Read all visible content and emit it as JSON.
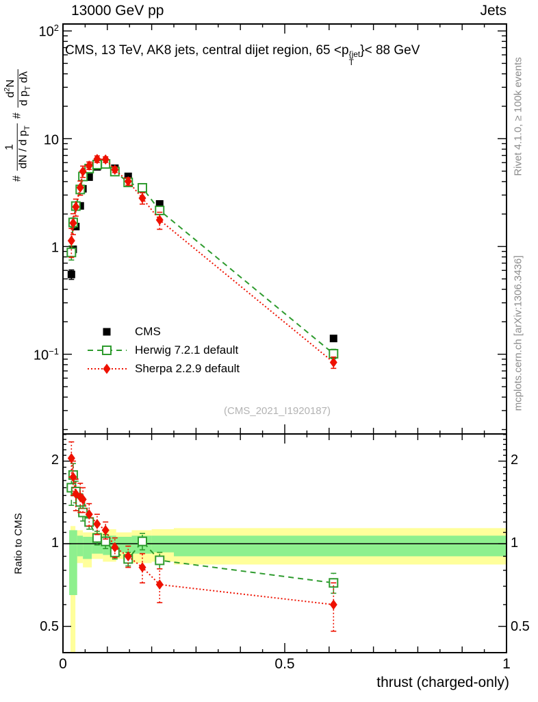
{
  "header": {
    "left": "13000 GeV pp",
    "right": "Jets"
  },
  "panel_title": {
    "prefix": "CMS, 13 TeV, AK8 jets, central dijet region, 65 <p",
    "sup": "{jet",
    "sub": "T",
    "suffix": "}< 88 GeV"
  },
  "watermark": "(CMS_2021_I1920187)",
  "side_notes": {
    "top": "Rivet 4.1.0, ≥ 100k events",
    "bottom": "mcplots.cern.ch [arXiv:1306.3436]"
  },
  "y_axis_math": {
    "hash1": "#",
    "frac1_num": "1",
    "frac1_den_prefix": "dN / d p",
    "frac1_den_sub": "T",
    "hash2": "#",
    "frac2_num_prefix": "d",
    "frac2_num_sup": "2",
    "frac2_num_suffix": "N",
    "frac2_den_prefix": "d p",
    "frac2_den_sub": "T",
    "frac2_den_suffix": " dλ"
  },
  "ratio_axis_label": "Ratio to CMS",
  "x_axis_label": "thrust (charged-only)",
  "x_tick_labels": [
    "0",
    "0.5",
    "1"
  ],
  "main_y_ticks": [
    {
      "base": "10",
      "exp": "2"
    },
    {
      "base": "10",
      "exp": ""
    },
    {
      "base": "1",
      "exp": ""
    },
    {
      "base": "10",
      "exp": "−1"
    }
  ],
  "ratio_y_ticks": [
    "2",
    "1",
    "0.5"
  ],
  "legend": [
    {
      "label": "CMS",
      "marker": "black-filled-square"
    },
    {
      "label": "Herwig 7.2.1 default",
      "marker": "green-open-square-dashed-line"
    },
    {
      "label": "Sherpa 2.2.9 default",
      "marker": "red-filled-diamond-dotted-line"
    }
  ],
  "colors": {
    "cms": "#000000",
    "herwig": "#2e9b2e",
    "sherpa": "#ee1100",
    "band_yellow": "#ffff9b",
    "band_green": "#8ef08e",
    "frame": "#000000",
    "side_text": "#8c8c8c",
    "watermark": "#b3b3b3"
  },
  "chart_data": {
    "type": "line",
    "title": "CMS, 13 TeV, AK8 jets, central dijet region, 65 < pT^{jet} < 88 GeV",
    "xlabel": "thrust (charged-only)",
    "ylabel": "# 1/(dN/dpT) # d^2N/(dpT dlambda)",
    "ratio_ylabel": "Ratio to CMS",
    "grid": false,
    "legend_position": "inside-left",
    "xlim": [
      0,
      1
    ],
    "main_ylog": true,
    "main_ylim": [
      0.0182,
      116
    ],
    "ratio_ylog": true,
    "ratio_ylim": [
      0.401,
      2.512
    ],
    "x": [
      0.019,
      0.023,
      0.029,
      0.039,
      0.045,
      0.059,
      0.077,
      0.096,
      0.117,
      0.147,
      0.179,
      0.218,
      0.61
    ],
    "series": [
      {
        "name": "CMS",
        "role": "data",
        "marker": "filled-square",
        "line": "none",
        "y": [
          0.55,
          0.94,
          1.53,
          2.38,
          3.43,
          4.4,
          5.48,
          5.72,
          5.32,
          4.47,
          3.43,
          2.48,
          0.14
        ],
        "yerr_frac": [
          0.1,
          0.07,
          0.05,
          0.04,
          0.03,
          0.03,
          0.03,
          0.03,
          0.03,
          0.03,
          0.04,
          0.05,
          0.06
        ]
      },
      {
        "name": "Herwig 7.2.1 default",
        "role": "mc",
        "marker": "open-square",
        "line": "dashed",
        "y": [
          0.88,
          1.67,
          2.37,
          3.38,
          4.46,
          5.28,
          5.75,
          5.83,
          4.95,
          3.93,
          3.5,
          2.16,
          0.101
        ],
        "yerr_frac": [
          0.15,
          0.1,
          0.08,
          0.06,
          0.05,
          0.04,
          0.04,
          0.04,
          0.04,
          0.05,
          0.06,
          0.08,
          0.1
        ],
        "ratio": [
          1.6,
          1.78,
          1.55,
          1.42,
          1.3,
          1.2,
          1.05,
          1.02,
          0.93,
          0.88,
          1.02,
          0.87,
          0.72
        ],
        "ratio_err": [
          0.22,
          0.18,
          0.14,
          0.1,
          0.09,
          0.07,
          0.06,
          0.06,
          0.05,
          0.05,
          0.07,
          0.06,
          0.06
        ]
      },
      {
        "name": "Sherpa 2.2.9 default",
        "role": "mc",
        "marker": "filled-diamond",
        "line": "dotted",
        "y": [
          1.13,
          1.65,
          2.33,
          3.52,
          4.97,
          5.63,
          6.47,
          6.41,
          5.16,
          4.02,
          2.81,
          1.76,
          0.084
        ],
        "yerr_frac": [
          0.3,
          0.22,
          0.18,
          0.15,
          0.12,
          0.08,
          0.07,
          0.06,
          0.06,
          0.08,
          0.12,
          0.18,
          0.12
        ],
        "ratio": [
          2.05,
          1.75,
          1.52,
          1.48,
          1.45,
          1.28,
          1.18,
          1.12,
          0.97,
          0.9,
          0.82,
          0.71,
          0.6
        ],
        "ratio_err": [
          0.3,
          0.25,
          0.2,
          0.18,
          0.15,
          0.12,
          0.1,
          0.08,
          0.08,
          0.08,
          0.1,
          0.1,
          0.12
        ]
      }
    ],
    "ratio_reference_line": 1,
    "ratio_bands": {
      "yellow": [
        [
          0.017,
          0.028,
          0.4,
          1.16
        ],
        [
          0.028,
          0.045,
          0.85,
          1.12
        ],
        [
          0.045,
          0.065,
          0.82,
          1.1
        ],
        [
          0.065,
          0.09,
          0.88,
          1.1
        ],
        [
          0.09,
          0.12,
          0.86,
          1.13
        ],
        [
          0.12,
          0.155,
          0.88,
          1.1
        ],
        [
          0.155,
          0.2,
          0.85,
          1.12
        ],
        [
          0.2,
          0.25,
          0.86,
          1.13
        ],
        [
          0.25,
          1.0,
          0.84,
          1.14
        ]
      ],
      "green": [
        [
          0.014,
          0.032,
          0.65,
          1.12
        ],
        [
          0.032,
          0.045,
          0.9,
          1.07
        ],
        [
          0.045,
          0.065,
          0.88,
          1.06
        ],
        [
          0.065,
          0.09,
          0.92,
          1.06
        ],
        [
          0.09,
          0.12,
          0.91,
          1.07
        ],
        [
          0.12,
          0.155,
          0.93,
          1.06
        ],
        [
          0.155,
          0.2,
          0.92,
          1.07
        ],
        [
          0.2,
          0.25,
          0.93,
          1.07
        ],
        [
          0.25,
          1.0,
          0.9,
          1.07
        ]
      ]
    }
  }
}
